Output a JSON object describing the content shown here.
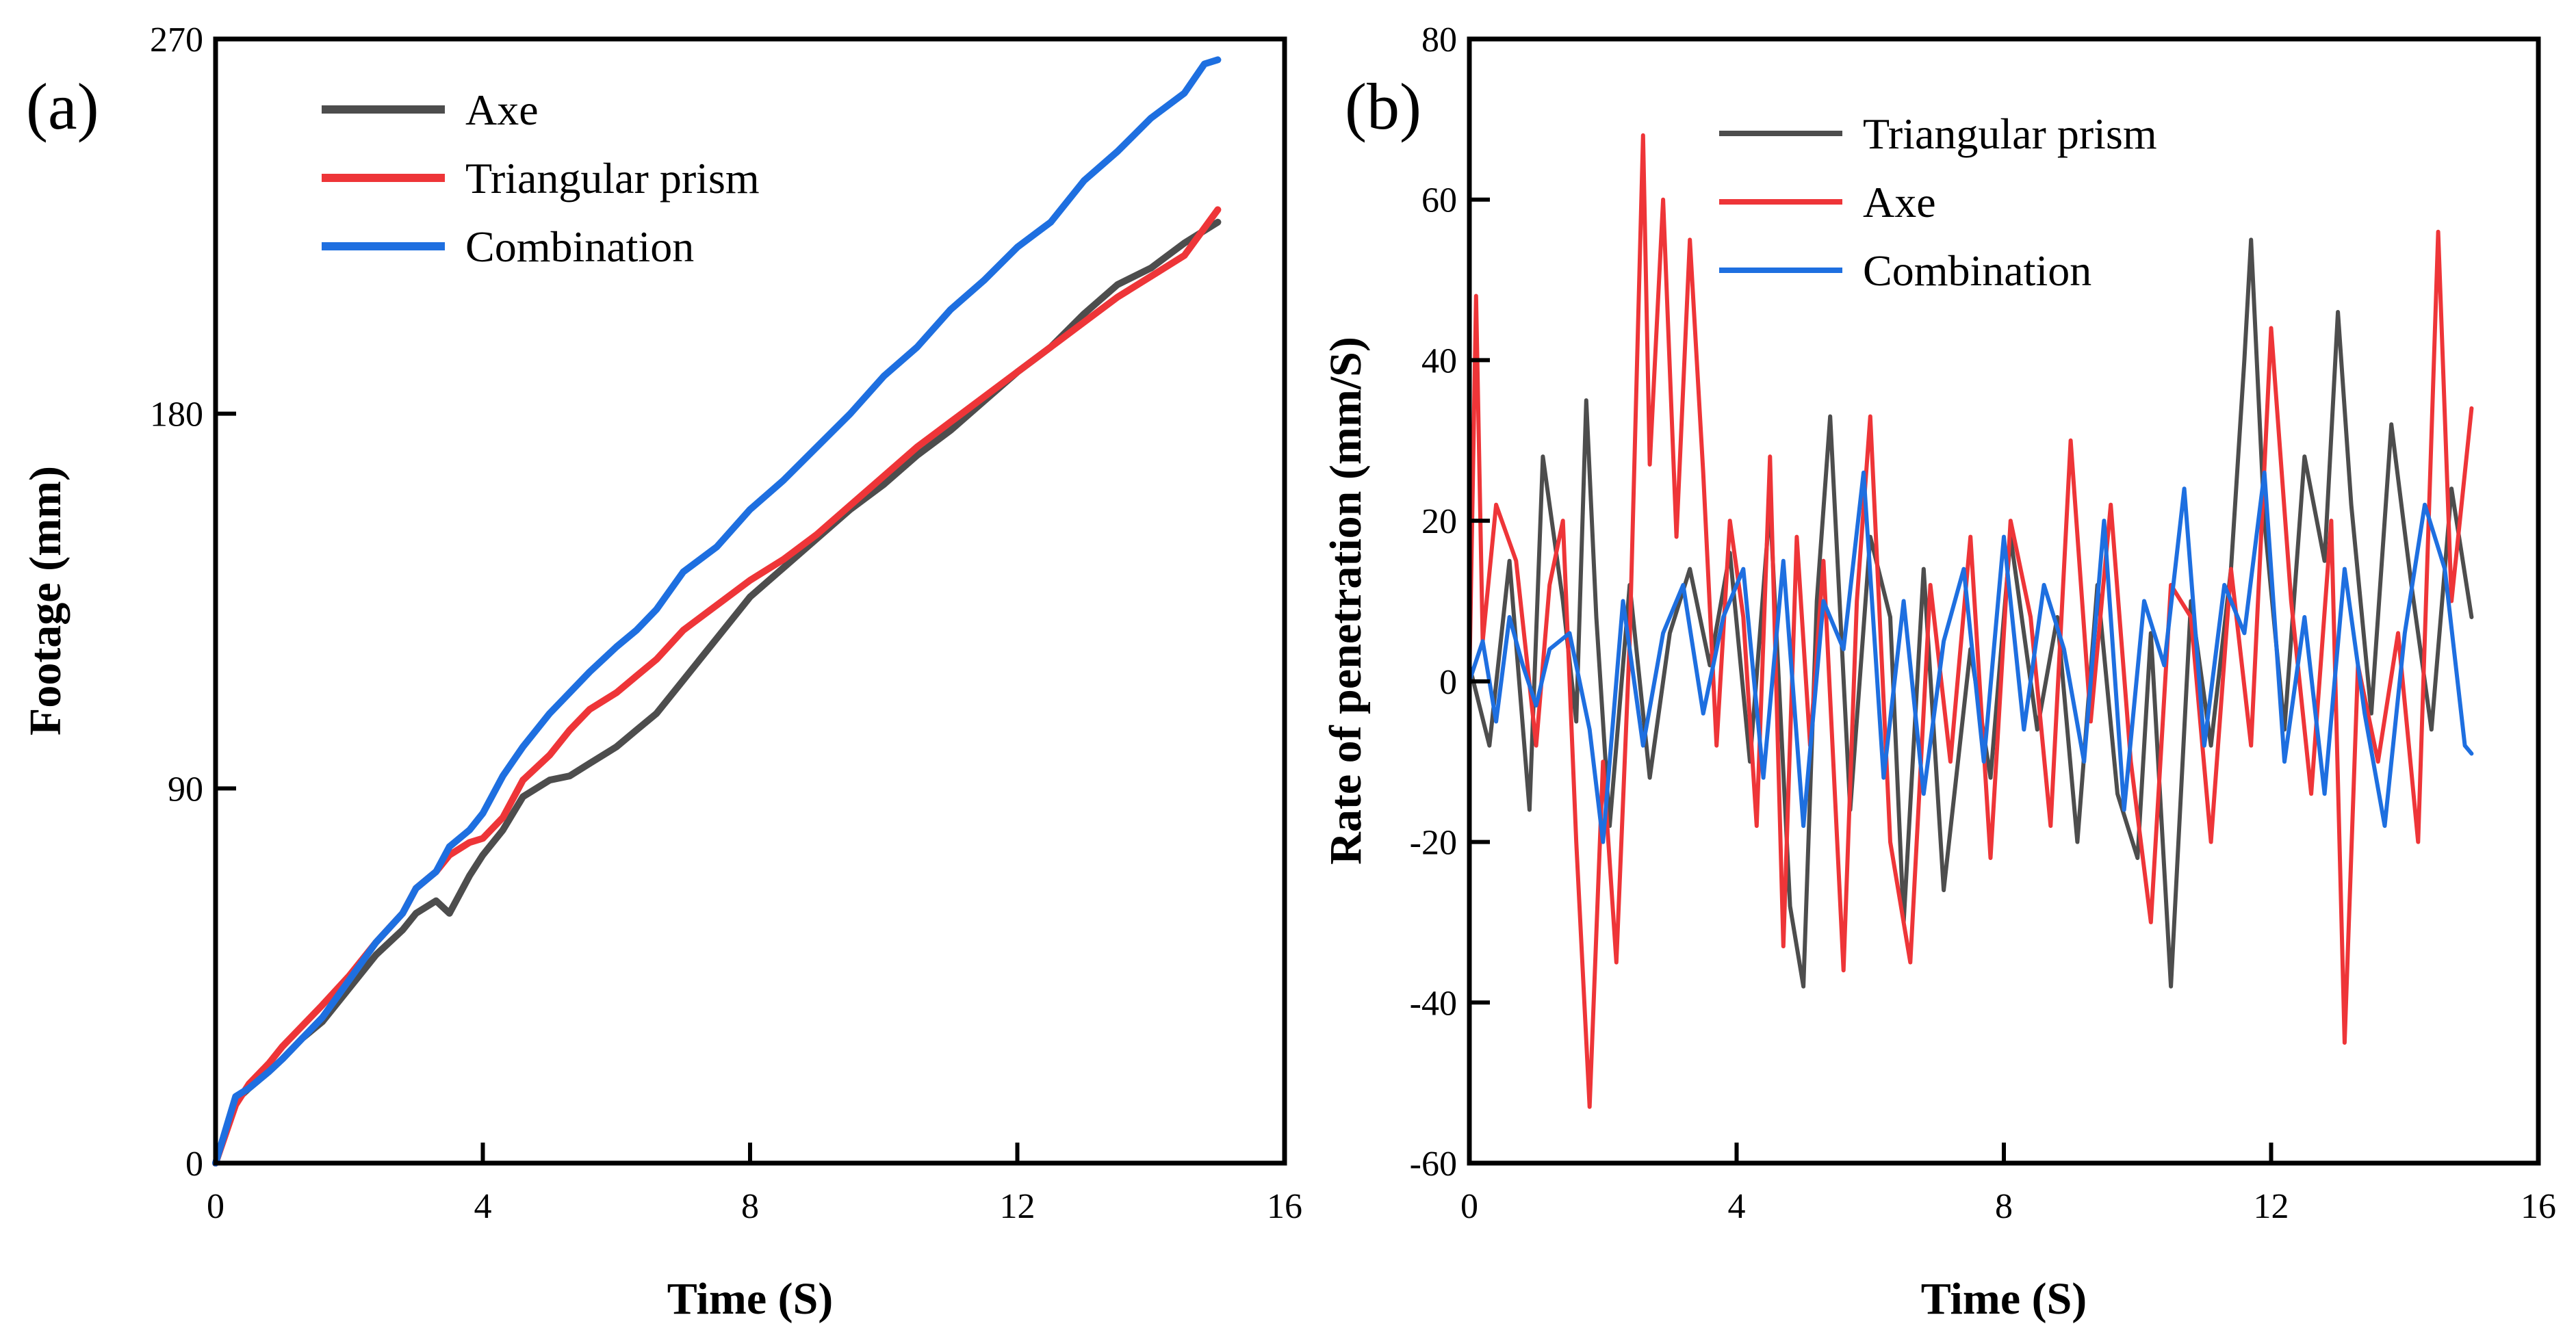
{
  "chart_data": [
    {
      "type": "line",
      "panel_label": "(a)",
      "xlabel": "Time (S)",
      "ylabel": "Footage (mm)",
      "xlim": [
        0,
        16
      ],
      "ylim": [
        0,
        270
      ],
      "xticks": [
        0,
        4,
        8,
        12,
        16
      ],
      "yticks": [
        0,
        90,
        180,
        270
      ],
      "grid": false,
      "legend_position": "top-left",
      "series": [
        {
          "name": "Axe",
          "color": "#4d4d4d",
          "x": [
            0,
            0.3,
            0.5,
            0.8,
            1.0,
            1.3,
            1.6,
            2.0,
            2.4,
            2.8,
            3.0,
            3.3,
            3.5,
            3.8,
            4.0,
            4.3,
            4.6,
            5.0,
            5.3,
            5.6,
            6.0,
            6.3,
            6.6,
            7.0,
            7.5,
            8.0,
            8.5,
            9.0,
            9.5,
            10.0,
            10.5,
            11.0,
            11.5,
            12.0,
            12.5,
            13.0,
            13.5,
            14.0,
            14.5,
            15.0
          ],
          "y": [
            0,
            15,
            18,
            22,
            25,
            30,
            34,
            42,
            50,
            56,
            60,
            63,
            60,
            69,
            74,
            80,
            88,
            92,
            93,
            96,
            100,
            104,
            108,
            116,
            126,
            136,
            143,
            150,
            157,
            163,
            170,
            176,
            183,
            190,
            196,
            204,
            211,
            215,
            221,
            226
          ]
        },
        {
          "name": "Triangular prism",
          "color": "#ee3538",
          "x": [
            0,
            0.3,
            0.5,
            0.8,
            1.0,
            1.3,
            1.6,
            2.0,
            2.4,
            2.8,
            3.0,
            3.3,
            3.5,
            3.8,
            4.0,
            4.3,
            4.6,
            5.0,
            5.3,
            5.6,
            6.0,
            6.3,
            6.6,
            7.0,
            7.5,
            8.0,
            8.5,
            9.0,
            9.5,
            10.0,
            10.5,
            11.0,
            11.5,
            12.0,
            12.5,
            13.0,
            13.5,
            14.0,
            14.5,
            15.0
          ],
          "y": [
            0,
            14,
            19,
            24,
            28,
            33,
            38,
            45,
            53,
            60,
            66,
            70,
            74,
            77,
            78,
            83,
            92,
            98,
            104,
            109,
            113,
            117,
            121,
            128,
            134,
            140,
            145,
            151,
            158,
            165,
            172,
            178,
            184,
            190,
            196,
            202,
            208,
            213,
            218,
            229
          ]
        },
        {
          "name": "Combination",
          "color": "#1e6fe0",
          "x": [
            0,
            0.3,
            0.5,
            0.8,
            1.0,
            1.3,
            1.6,
            2.0,
            2.4,
            2.8,
            3.0,
            3.3,
            3.5,
            3.8,
            4.0,
            4.3,
            4.6,
            5.0,
            5.3,
            5.6,
            6.0,
            6.3,
            6.6,
            7.0,
            7.5,
            8.0,
            8.5,
            9.0,
            9.5,
            10.0,
            10.5,
            11.0,
            11.5,
            12.0,
            12.5,
            13.0,
            13.5,
            14.0,
            14.5,
            14.8,
            15.0
          ],
          "y": [
            0,
            16,
            18,
            22,
            25,
            30,
            35,
            44,
            53,
            60,
            66,
            70,
            76,
            80,
            84,
            93,
            100,
            108,
            113,
            118,
            124,
            128,
            133,
            142,
            148,
            157,
            164,
            172,
            180,
            189,
            196,
            205,
            212,
            220,
            226,
            236,
            243,
            251,
            257,
            264,
            265
          ]
        }
      ]
    },
    {
      "type": "line",
      "panel_label": "(b)",
      "xlabel": "Time (S)",
      "ylabel": "Rate of penetration (mm/S)",
      "xlim": [
        0,
        16
      ],
      "ylim": [
        -60,
        80
      ],
      "xticks": [
        0,
        4,
        8,
        12,
        16
      ],
      "yticks": [
        -60,
        -40,
        -20,
        0,
        20,
        40,
        60,
        80
      ],
      "grid": false,
      "legend_position": "top-left",
      "series": [
        {
          "name": "Triangular prism",
          "color": "#4d4d4d",
          "x": [
            0,
            0.3,
            0.6,
            0.9,
            1.1,
            1.4,
            1.6,
            1.75,
            1.9,
            2.1,
            2.4,
            2.7,
            3.0,
            3.3,
            3.6,
            3.9,
            4.2,
            4.5,
            4.8,
            5.0,
            5.2,
            5.4,
            5.7,
            6.0,
            6.3,
            6.5,
            6.8,
            7.1,
            7.5,
            7.8,
            8.1,
            8.5,
            8.8,
            9.1,
            9.4,
            9.7,
            10.0,
            10.2,
            10.5,
            10.8,
            11.1,
            11.4,
            11.6,
            11.7,
            11.9,
            12.2,
            12.5,
            12.8,
            13.0,
            13.2,
            13.5,
            13.8,
            14.1,
            14.4,
            14.7,
            15.0
          ],
          "y": [
            2,
            -8,
            15,
            -16,
            28,
            10,
            -5,
            35,
            8,
            -18,
            12,
            -12,
            6,
            14,
            2,
            16,
            -10,
            22,
            -28,
            -38,
            10,
            33,
            -16,
            18,
            8,
            -30,
            14,
            -26,
            4,
            -12,
            18,
            -6,
            8,
            -20,
            12,
            -14,
            -22,
            6,
            -38,
            10,
            -8,
            14,
            40,
            55,
            20,
            -6,
            28,
            15,
            46,
            22,
            -4,
            32,
            12,
            -6,
            24,
            8
          ]
        },
        {
          "name": "Axe",
          "color": "#ee3538",
          "x": [
            0,
            0.1,
            0.2,
            0.4,
            0.7,
            1.0,
            1.2,
            1.4,
            1.6,
            1.8,
            2.0,
            2.2,
            2.4,
            2.6,
            2.7,
            2.9,
            3.1,
            3.3,
            3.5,
            3.7,
            3.9,
            4.1,
            4.3,
            4.5,
            4.7,
            4.9,
            5.1,
            5.3,
            5.6,
            5.8,
            6.0,
            6.3,
            6.6,
            6.9,
            7.2,
            7.5,
            7.8,
            8.1,
            8.4,
            8.7,
            9.0,
            9.3,
            9.6,
            9.9,
            10.2,
            10.5,
            10.8,
            11.1,
            11.4,
            11.7,
            12.0,
            12.3,
            12.6,
            12.9,
            13.1,
            13.3,
            13.6,
            13.9,
            14.2,
            14.5,
            14.7,
            15.0
          ],
          "y": [
            0,
            48,
            5,
            22,
            15,
            -8,
            12,
            20,
            -20,
            -53,
            -10,
            -35,
            5,
            68,
            27,
            60,
            18,
            55,
            26,
            -8,
            20,
            8,
            -18,
            28,
            -33,
            18,
            -8,
            15,
            -36,
            10,
            33,
            -20,
            -35,
            12,
            -10,
            18,
            -22,
            20,
            8,
            -18,
            30,
            -5,
            22,
            -10,
            -30,
            12,
            8,
            -20,
            14,
            -8,
            44,
            10,
            -14,
            20,
            -45,
            2,
            -10,
            6,
            -20,
            56,
            10,
            34
          ]
        },
        {
          "name": "Combination",
          "color": "#1e6fe0",
          "x": [
            0,
            0.2,
            0.4,
            0.6,
            0.8,
            1.0,
            1.2,
            1.5,
            1.8,
            2.0,
            2.3,
            2.6,
            2.9,
            3.2,
            3.5,
            3.8,
            4.1,
            4.4,
            4.7,
            5.0,
            5.3,
            5.6,
            5.9,
            6.2,
            6.5,
            6.8,
            7.1,
            7.4,
            7.7,
            8.0,
            8.3,
            8.6,
            8.9,
            9.2,
            9.5,
            9.8,
            10.1,
            10.4,
            10.7,
            11.0,
            11.3,
            11.6,
            11.9,
            12.2,
            12.5,
            12.8,
            13.1,
            13.4,
            13.7,
            14.0,
            14.3,
            14.6,
            14.9,
            15.0
          ],
          "y": [
            0,
            5,
            -5,
            8,
            2,
            -3,
            4,
            6,
            -6,
            -20,
            10,
            -8,
            6,
            12,
            -4,
            8,
            14,
            -12,
            15,
            -18,
            10,
            4,
            26,
            -12,
            10,
            -14,
            5,
            14,
            -10,
            18,
            -6,
            12,
            4,
            -10,
            20,
            -16,
            10,
            2,
            24,
            -8,
            12,
            6,
            26,
            -10,
            8,
            -14,
            14,
            -4,
            -18,
            6,
            22,
            14,
            -8,
            -9
          ]
        }
      ]
    }
  ]
}
